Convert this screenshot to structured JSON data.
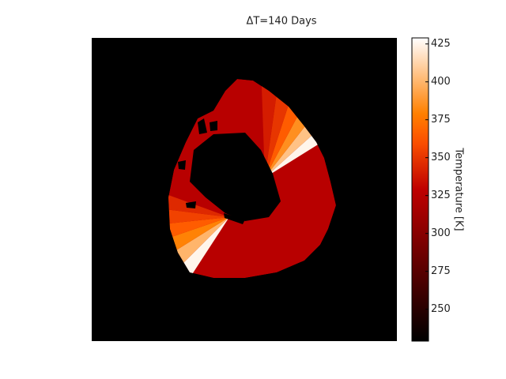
{
  "chart_data": {
    "type": "heatmap",
    "title": "ΔT=140 Days",
    "values": [
      325,
      425,
      405,
      385,
      365,
      350,
      340,
      425,
      400,
      380,
      365,
      355,
      345
    ],
    "clim": [
      229,
      429
    ],
    "cticks": [
      250,
      275,
      300,
      325,
      350,
      375,
      400,
      425
    ],
    "colorbar_label": "Temperature [K]",
    "colormap": "gist_heat",
    "background": "#000000"
  }
}
